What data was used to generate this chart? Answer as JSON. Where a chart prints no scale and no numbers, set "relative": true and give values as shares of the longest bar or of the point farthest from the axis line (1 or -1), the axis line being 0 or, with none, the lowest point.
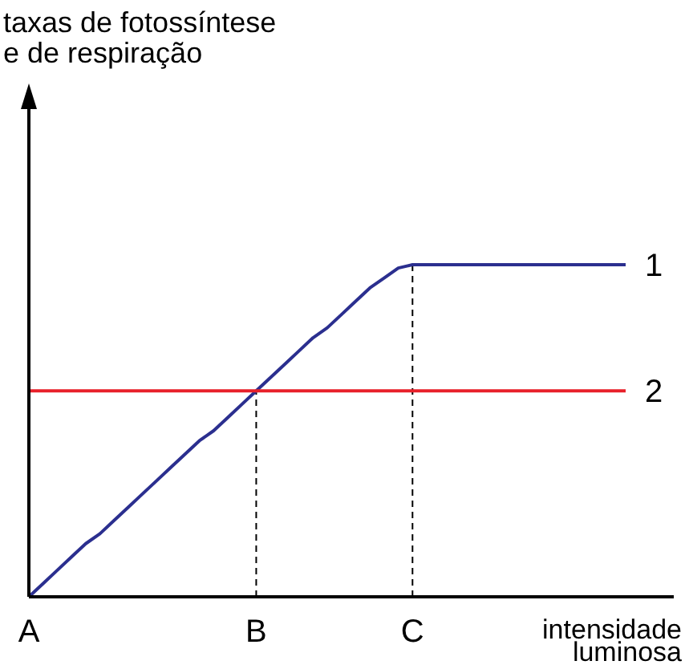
{
  "chart_data": {
    "type": "line",
    "relative": true,
    "annotations": [
      "taxas de fotossíntese\ne de respiração"
    ],
    "xlabel": "intensidade\nluminosa",
    "categories": [
      "A",
      null,
      null,
      null,
      null,
      null,
      null,
      null,
      null,
      null,
      null,
      null,
      null,
      null,
      null,
      null,
      "B",
      null,
      null,
      null,
      null,
      null,
      null,
      null,
      null,
      null,
      null,
      "C",
      null,
      null,
      null,
      null,
      null,
      null,
      null,
      null,
      null,
      null,
      null,
      null,
      null,
      null,
      null
    ],
    "series": [
      {
        "name": "1",
        "color": "#2b2f8f",
        "values": [
          0,
          0.04,
          0.08,
          0.12,
          0.16,
          0.19,
          0.23,
          0.27,
          0.31,
          0.35,
          0.39,
          0.43,
          0.47,
          0.5,
          0.54,
          0.58,
          0.62,
          0.66,
          0.7,
          0.74,
          0.78,
          0.81,
          0.85,
          0.89,
          0.93,
          0.96,
          0.99,
          1,
          1,
          1,
          1,
          1,
          1,
          1,
          1,
          1,
          1,
          1,
          1,
          1,
          1,
          1,
          1
        ]
      },
      {
        "name": "2",
        "color": "#e8202a",
        "values": [
          0.62,
          0.62,
          0.62,
          0.62,
          0.62,
          0.62,
          0.62,
          0.62,
          0.62,
          0.62,
          0.62,
          0.62,
          0.62,
          0.62,
          0.62,
          0.62,
          0.62,
          0.62,
          0.62,
          0.62,
          0.62,
          0.62,
          0.62,
          0.62,
          0.62,
          0.62,
          0.62,
          0.62,
          0.62,
          0.62,
          0.62,
          0.62,
          0.62,
          0.62,
          0.62,
          0.62,
          0.62,
          0.62,
          0.62,
          0.62,
          0.62,
          0.62,
          0.62
        ]
      }
    ],
    "ref_lines": [
      {
        "axis": "x",
        "value": "B",
        "color": "#000000",
        "line_style": "dashed"
      },
      {
        "axis": "x",
        "value": "C",
        "color": "#000000",
        "line_style": "dashed"
      }
    ]
  }
}
